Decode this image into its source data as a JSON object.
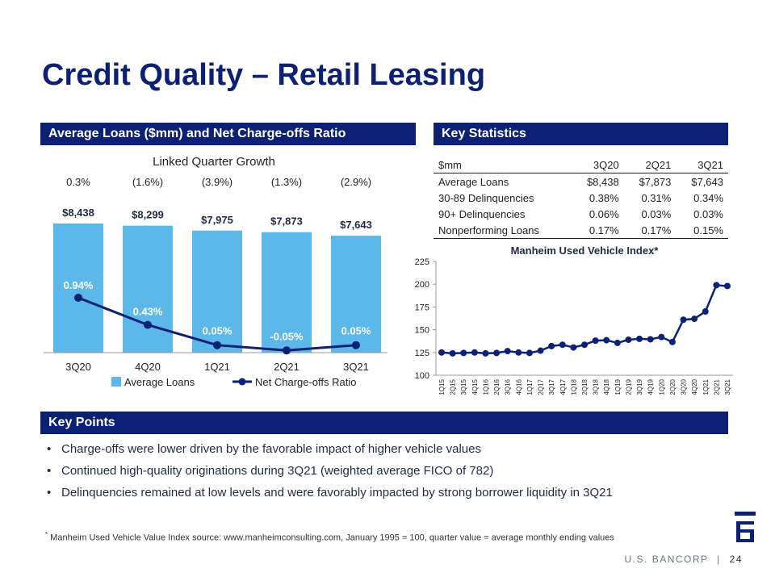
{
  "title": "Credit Quality – Retail Leasing",
  "left_panel": {
    "header": "Average Loans ($mm) and Net Charge-offs Ratio",
    "lq_title": "Linked Quarter Growth",
    "lq_values": [
      "0.3%",
      "(1.6%)",
      "(3.9%)",
      "(1.3%)",
      "(2.9%)"
    ]
  },
  "right_panel": {
    "header": "Key Statistics",
    "table": {
      "columns": [
        "$mm",
        "3Q20",
        "2Q21",
        "3Q21"
      ],
      "rows": [
        [
          "Average Loans",
          "$8,438",
          "$7,873",
          "$7,643"
        ],
        [
          "30-89 Delinquencies",
          "0.38%",
          "0.31%",
          "0.34%"
        ],
        [
          "90+ Delinquencies",
          "0.06%",
          "0.03%",
          "0.03%"
        ],
        [
          "Nonperforming Loans",
          "0.17%",
          "0.17%",
          "0.15%"
        ]
      ]
    }
  },
  "key_points": {
    "header": "Key Points",
    "bullet": "•",
    "items": [
      "Charge-offs were lower driven by the favorable impact of higher vehicle values",
      "Continued high-quality originations during 3Q21 (weighted average FICO of 782)",
      "Delinquencies remained at low levels and were favorably impacted by strong borrower liquidity in 3Q21"
    ]
  },
  "footnote": {
    "mark": "*",
    "text": " Manheim Used Vehicle Value Index source: www.manheimconsulting.com, January 1995 = 100, quarter value = average monthly ending values"
  },
  "footer": {
    "brand": "U.S. BANCORP",
    "separator": "|",
    "page": "24"
  },
  "colors": {
    "navy": "#0c2074",
    "bar": "#5cb8e8"
  },
  "chart_data": [
    {
      "type": "bar",
      "categories": [
        "3Q20",
        "4Q20",
        "1Q21",
        "2Q21",
        "3Q21"
      ],
      "series": [
        {
          "name": "Average Loans",
          "type": "bar",
          "values": [
            8438,
            8299,
            7975,
            7873,
            7643
          ],
          "labels": [
            "$8,438",
            "$8,299",
            "$7,975",
            "$7,873",
            "$7,643"
          ]
        },
        {
          "name": "Net Charge-offs Ratio",
          "type": "line",
          "values": [
            0.94,
            0.43,
            0.05,
            -0.05,
            0.05
          ],
          "labels": [
            "0.94%",
            "0.43%",
            "0.05%",
            "-0.05%",
            "0.05%"
          ]
        }
      ],
      "legend": "bottom"
    },
    {
      "type": "line",
      "title": "Manheim Used Vehicle Index*",
      "x": [
        "1Q15",
        "2Q15",
        "3Q15",
        "4Q15",
        "1Q16",
        "2Q16",
        "3Q16",
        "4Q16",
        "1Q17",
        "2Q17",
        "3Q17",
        "4Q17",
        "1Q18",
        "2Q18",
        "3Q18",
        "4Q18",
        "1Q19",
        "2Q19",
        "3Q19",
        "4Q19",
        "1Q20",
        "2Q20",
        "3Q20",
        "4Q20",
        "1Q21",
        "2Q21",
        "3Q21"
      ],
      "y": [
        125,
        124,
        124.5,
        125,
        124,
        124.5,
        126.5,
        125,
        124.5,
        127,
        132,
        133.5,
        130.5,
        133.5,
        138,
        138.5,
        135.5,
        139,
        140,
        139.5,
        142,
        136.5,
        161,
        162,
        170,
        199,
        198
      ],
      "ylim": [
        100,
        225
      ],
      "yticks": [
        100,
        125,
        150,
        175,
        200,
        225
      ]
    }
  ]
}
